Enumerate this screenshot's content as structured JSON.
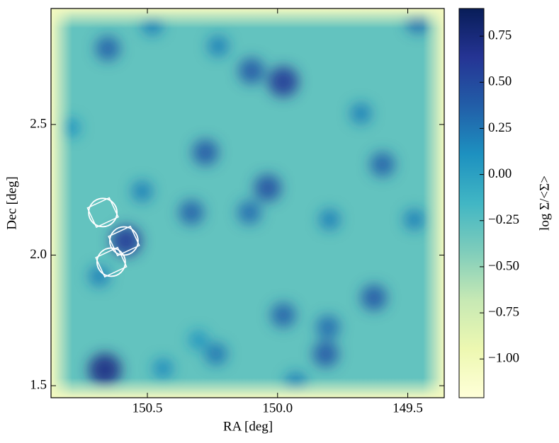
{
  "chart_data": {
    "type": "density",
    "xlabel": "RA [deg]",
    "ylabel": "Dec [deg]",
    "colorbar_label": "log Σ/<Σ>",
    "xlim": [
      150.87,
      149.36
    ],
    "ylim": [
      1.454,
      2.944
    ],
    "xticks": [
      150.5,
      {
        "value": 150,
        "label": "150.0"
      },
      149.5
    ],
    "yticks": [
      1.5,
      {
        "value": 2,
        "label": "2.0"
      },
      2.5
    ],
    "clim": [
      -1.21,
      0.9
    ],
    "cticks": [
      {
        "value": 0.75,
        "label": "0.75"
      },
      {
        "value": 0.5,
        "label": "0.50"
      },
      {
        "value": 0.25,
        "label": "0.25"
      },
      {
        "value": 0,
        "label": "0.00"
      },
      {
        "value": -0.25,
        "label": "−0.25"
      },
      {
        "value": -0.5,
        "label": "−0.50"
      },
      {
        "value": -0.75,
        "label": "−0.75"
      },
      {
        "value": -1,
        "label": "−1.00"
      }
    ],
    "colormap": "YlGnBu",
    "background_value": -0.3,
    "peaks": {
      "x": [
        150.663,
        149.978,
        150.1,
        150.277,
        150.038,
        150.331,
        150.582,
        149.63,
        149.597,
        149.978,
        149.815,
        149.806,
        149.461,
        150.652,
        150.481,
        150.228,
        150.108,
        150.236,
        149.93,
        150.44,
        150.794,
        149.8,
        149.475,
        149.68,
        150.52,
        150.304,
        150.685
      ],
      "y": [
        1.561,
        2.664,
        2.705,
        2.393,
        2.257,
        2.163,
        2.054,
        1.837,
        2.347,
        1.77,
        1.621,
        1.724,
        2.894,
        2.791,
        2.881,
        2.8,
        2.163,
        1.621,
        1.512,
        1.566,
        2.488,
        2.136,
        2.136,
        2.542,
        2.244,
        1.675,
        1.919
      ],
      "values": [
        0.7,
        0.6,
        0.4,
        0.4,
        0.45,
        0.35,
        0.6,
        0.4,
        0.35,
        0.35,
        0.4,
        0.3,
        0.3,
        0.35,
        0.2,
        0.2,
        0.3,
        0.25,
        0.2,
        0.15,
        0.1,
        0.2,
        0.2,
        0.2,
        0.2,
        0.1,
        0.2
      ]
    },
    "regions": {
      "x": [
        150.671,
        150.59,
        150.639
      ],
      "y": [
        2.163,
        2.054,
        1.973
      ]
    }
  }
}
